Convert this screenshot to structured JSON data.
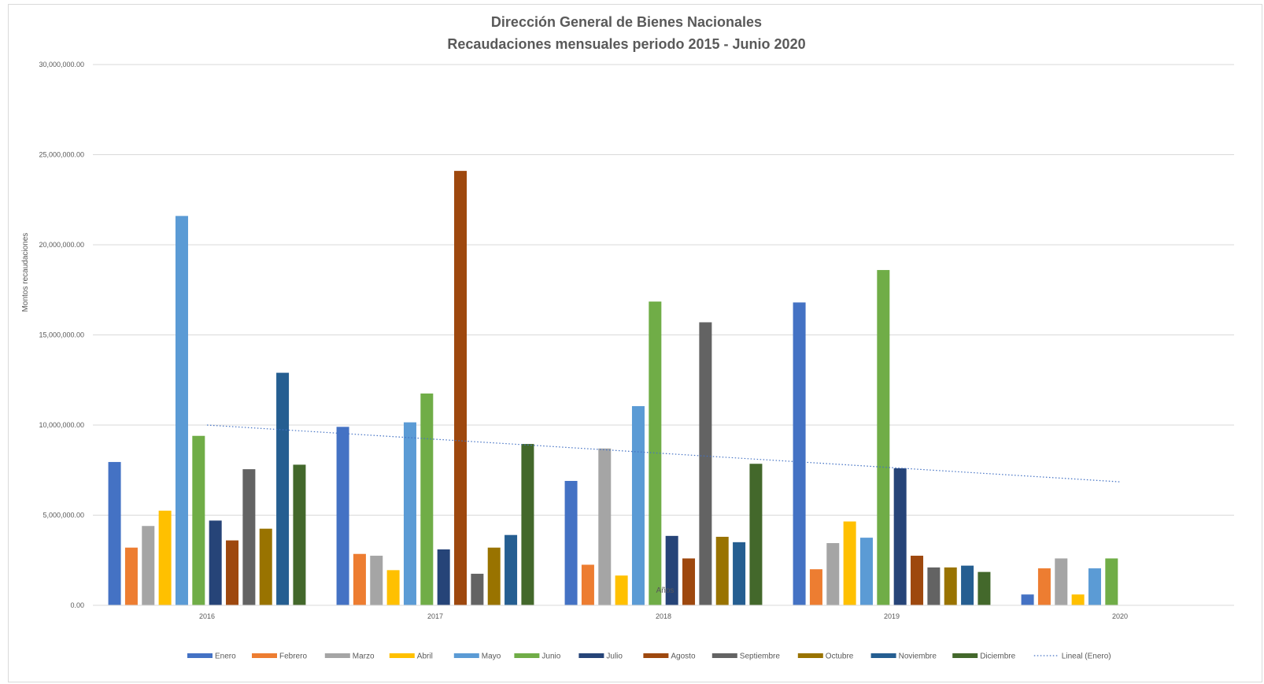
{
  "chart_data": {
    "type": "bar",
    "title": "Dirección General de Bienes Nacionales",
    "subtitle": "Recaudaciones mensuales periodo 2015 - Junio 2020",
    "xlabel": "Años",
    "ylabel": "Montos recaudaciones",
    "ylim": [
      0,
      30000000
    ],
    "yticks": [
      "0.00",
      "5,000,000.00",
      "10,000,000.00",
      "15,000,000.00",
      "20,000,000.00",
      "25,000,000.00",
      "30,000,000.00"
    ],
    "ytick_values": [
      0,
      5000000,
      10000000,
      15000000,
      20000000,
      25000000,
      30000000
    ],
    "grid": true,
    "legend_position": "bottom",
    "categories": [
      "2016",
      "2017",
      "2018",
      "2019",
      "2020"
    ],
    "series": [
      {
        "name": "Enero",
        "color": "#4472C4",
        "values": [
          7950000,
          9900000,
          6900000,
          16800000,
          600000
        ]
      },
      {
        "name": "Febrero",
        "color": "#ED7D31",
        "values": [
          3200000,
          2850000,
          2250000,
          2000000,
          2050000
        ]
      },
      {
        "name": "Marzo",
        "color": "#A5A5A5",
        "values": [
          4400000,
          2750000,
          8700000,
          3450000,
          2600000
        ]
      },
      {
        "name": "Abril",
        "color": "#FFC000",
        "values": [
          5250000,
          1950000,
          1650000,
          4650000,
          600000
        ]
      },
      {
        "name": "Mayo",
        "color": "#5B9BD5",
        "values": [
          21600000,
          10150000,
          11050000,
          3750000,
          2050000
        ]
      },
      {
        "name": "Junio",
        "color": "#70AD47",
        "values": [
          9400000,
          11750000,
          16850000,
          18600000,
          2600000
        ]
      },
      {
        "name": "Julio",
        "color": "#264478",
        "values": [
          4700000,
          3100000,
          3850000,
          7600000,
          null
        ]
      },
      {
        "name": "Agosto",
        "color": "#9E480E",
        "values": [
          3600000,
          24100000,
          2600000,
          2750000,
          null
        ]
      },
      {
        "name": "Septiembre",
        "color": "#636363",
        "values": [
          7550000,
          1750000,
          15700000,
          2100000,
          null
        ]
      },
      {
        "name": "Octubre",
        "color": "#997300",
        "values": [
          4250000,
          3200000,
          3800000,
          2100000,
          null
        ]
      },
      {
        "name": "Noviembre",
        "color": "#255E91",
        "values": [
          12900000,
          3900000,
          3500000,
          2200000,
          null
        ]
      },
      {
        "name": "Diciembre",
        "color": "#43682B",
        "values": [
          7800000,
          8950000,
          7850000,
          1850000,
          null
        ]
      }
    ],
    "trendline": {
      "name": "Lineal (Enero)",
      "color": "#4472C4",
      "style": "dotted",
      "x_start": "2016",
      "x_end": "2020",
      "y_start": 10000000,
      "y_end": 6850000
    }
  }
}
